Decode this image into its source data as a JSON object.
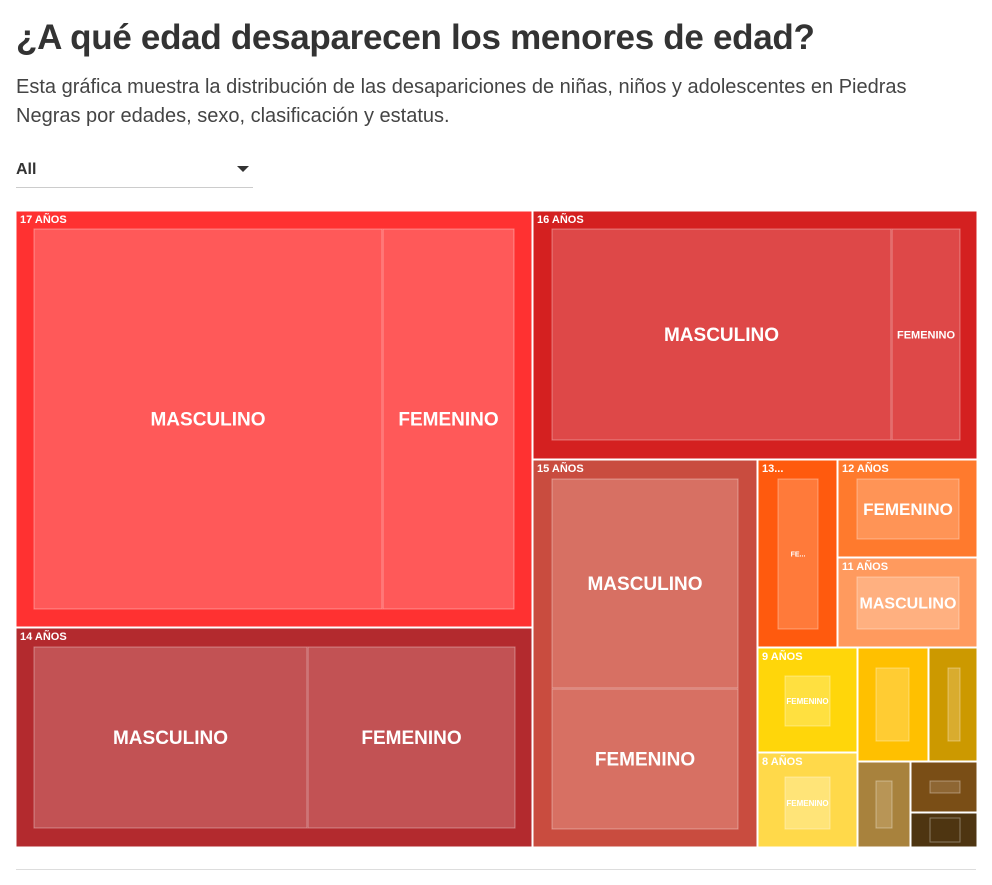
{
  "header": {
    "title": "¿A qué edad desaparecen los menores de edad?",
    "subtitle": "Esta gráfica muestra la distribución de las desapariciones de niñas, niños y adolescentes en Piedras Negras por edades, sexo, clasificación y estatus."
  },
  "filter": {
    "selected": "All"
  },
  "chart_data": {
    "type": "treemap",
    "groups": [
      {
        "label": "17 AÑOS",
        "color": "#FF3131",
        "children": [
          {
            "label": "MASCULINO",
            "value": 133,
            "color": "#FF5959"
          },
          {
            "label": "FEMENINO",
            "value": 50,
            "color": "#FF5959"
          }
        ]
      },
      {
        "label": "16 AÑOS",
        "color": "#D42020",
        "children": [
          {
            "label": "MASCULINO",
            "value": 72,
            "color": "#DE4848"
          },
          {
            "label": "FEMENINO",
            "value": 14,
            "color": "#DE4848"
          }
        ]
      },
      {
        "label": "14 AÑOS",
        "color": "#B32A2E",
        "children": [
          {
            "label": "MASCULINO",
            "value": 52,
            "color": "#C25254"
          },
          {
            "label": "FEMENINO",
            "value": 35,
            "color": "#C25254"
          }
        ]
      },
      {
        "label": "15 AÑOS",
        "color": "#C94C3F",
        "children": [
          {
            "label": "MASCULINO",
            "value": 36,
            "color": "#D77063"
          },
          {
            "label": "FEMENINO",
            "value": 25,
            "color": "#D77063"
          }
        ]
      },
      {
        "label": "13...",
        "color": "#FF5A0E",
        "children": [
          {
            "label": "FE...",
            "value": 11,
            "color": "#FF7A3A"
          }
        ]
      },
      {
        "label": "12 AÑOS",
        "color": "#FF7A2D",
        "children": [
          {
            "label": "FEMENINO",
            "value": 9,
            "color": "#FF9456"
          }
        ]
      },
      {
        "label": "11 AÑOS",
        "color": "#FF9A5E",
        "children": [
          {
            "label": "MASCULINO",
            "value": 8,
            "color": "#FFB080"
          }
        ]
      },
      {
        "label": "9 AÑOS",
        "color": "#FFD60A",
        "children": [
          {
            "label": "FEMENINO",
            "value": 5,
            "color": "#FFE040"
          }
        ]
      },
      {
        "label": "",
        "color": "#FFC000",
        "children": [
          {
            "label": "",
            "value": 4,
            "color": "#FFCC33"
          }
        ]
      },
      {
        "label": "",
        "color": "#CC9900",
        "children": [
          {
            "label": "",
            "value": 3,
            "color": "#D9AC2E"
          }
        ]
      },
      {
        "label": "8 AÑOS",
        "color": "#FFD94A",
        "children": [
          {
            "label": "FEMENINO",
            "value": 4,
            "color": "#FFE478"
          }
        ]
      },
      {
        "label": "",
        "color": "#A8823D",
        "children": [
          {
            "label": "",
            "value": 2,
            "color": "#B89556"
          }
        ]
      },
      {
        "label": "",
        "color": "#7A4E16",
        "children": [
          {
            "label": "",
            "value": 1,
            "color": "#8E6633"
          }
        ]
      },
      {
        "label": "",
        "color": "#4E3511",
        "children": [
          {
            "label": "",
            "value": 1,
            "color": "#4E3511"
          }
        ]
      }
    ]
  }
}
